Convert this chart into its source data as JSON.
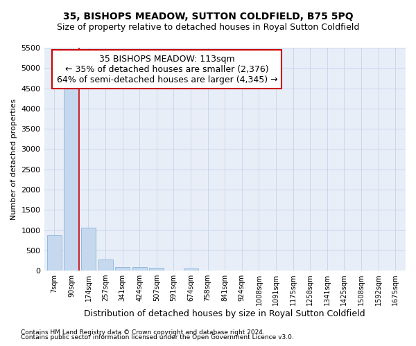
{
  "title": "35, BISHOPS MEADOW, SUTTON COLDFIELD, B75 5PQ",
  "subtitle": "Size of property relative to detached houses in Royal Sutton Coldfield",
  "xlabel": "Distribution of detached houses by size in Royal Sutton Coldfield",
  "ylabel": "Number of detached properties",
  "footnote1": "Contains HM Land Registry data © Crown copyright and database right 2024.",
  "footnote2": "Contains public sector information licensed under the Open Government Licence v3.0.",
  "annotation_title": "35 BISHOPS MEADOW: 113sqm",
  "annotation_line1": "← 35% of detached houses are smaller (2,376)",
  "annotation_line2": "64% of semi-detached houses are larger (4,345) →",
  "bar_color": "#c5d8ee",
  "bar_edge_color": "#8ab4d8",
  "grid_color": "#c8d8ec",
  "bg_color": "#e8eef8",
  "vline_color": "#cc0000",
  "annotation_edge": "#cc0000",
  "categories": [
    "7sqm",
    "90sqm",
    "174sqm",
    "257sqm",
    "341sqm",
    "424sqm",
    "507sqm",
    "591sqm",
    "674sqm",
    "758sqm",
    "841sqm",
    "924sqm",
    "1008sqm",
    "1091sqm",
    "1175sqm",
    "1258sqm",
    "1341sqm",
    "1425sqm",
    "1508sqm",
    "1592sqm",
    "1675sqm"
  ],
  "values": [
    880,
    4500,
    1060,
    280,
    90,
    80,
    75,
    0,
    50,
    0,
    0,
    0,
    0,
    0,
    0,
    0,
    0,
    0,
    0,
    0,
    0
  ],
  "ylim": [
    0,
    5500
  ],
  "yticks": [
    0,
    500,
    1000,
    1500,
    2000,
    2500,
    3000,
    3500,
    4000,
    4500,
    5000,
    5500
  ],
  "vline_x": 1.45,
  "title_fontsize": 10,
  "subtitle_fontsize": 9,
  "tick_fontsize": 7,
  "ylabel_fontsize": 8,
  "xlabel_fontsize": 9,
  "annotation_fontsize": 9,
  "footnote_fontsize": 6.5
}
